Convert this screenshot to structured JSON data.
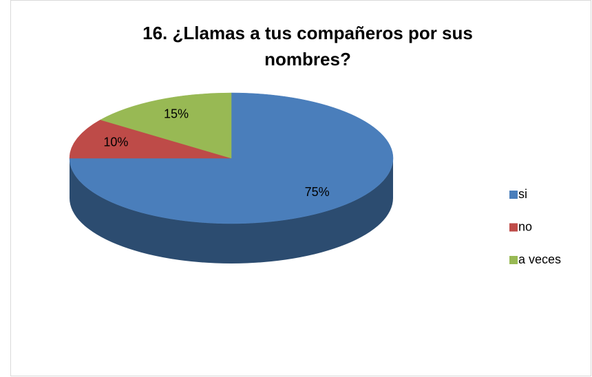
{
  "chart_data": {
    "type": "pie",
    "title_lines": [
      "16. ¿Llamas a tus compañeros por sus",
      "nombres?"
    ],
    "categories": [
      "si",
      "no",
      "a veces"
    ],
    "values": [
      75,
      10,
      15
    ],
    "value_labels": [
      "75%",
      "10%",
      "15%"
    ],
    "colors": [
      "#4a7ebb",
      "#be4b48",
      "#98b954"
    ],
    "legend": "right"
  }
}
